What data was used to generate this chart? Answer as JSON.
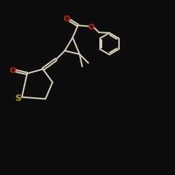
{
  "bg_color": "#0d0d0d",
  "bond_color": "#d8d0b8",
  "o_color": "#cc2200",
  "s_color": "#b8a000",
  "line_width": 1.5,
  "fig_size": [
    2.5,
    2.5
  ],
  "dpi": 100,
  "xlim": [
    0,
    10
  ],
  "ylim": [
    0,
    10
  ]
}
